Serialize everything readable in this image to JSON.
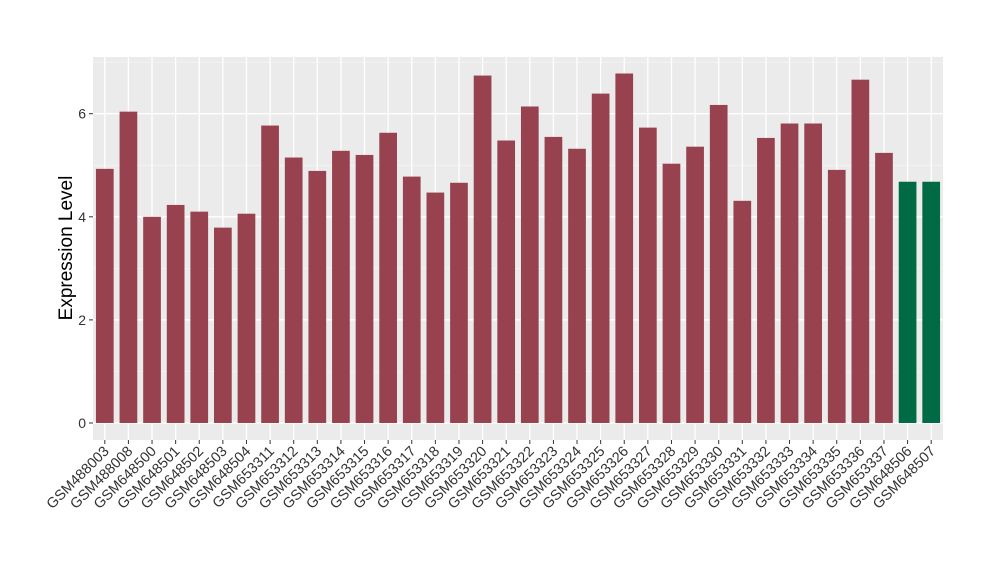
{
  "chart_data": {
    "type": "bar",
    "y_label": "Expression Level",
    "categories": [
      "GSM488003",
      "GSM488008",
      "GSM648500",
      "GSM648501",
      "GSM648502",
      "GSM648503",
      "GSM648504",
      "GSM653311",
      "GSM653312",
      "GSM653313",
      "GSM653314",
      "GSM653315",
      "GSM653316",
      "GSM653317",
      "GSM653318",
      "GSM653319",
      "GSM653320",
      "GSM653321",
      "GSM653322",
      "GSM653323",
      "GSM653324",
      "GSM653325",
      "GSM653326",
      "GSM653327",
      "GSM653328",
      "GSM653329",
      "GSM653330",
      "GSM653331",
      "GSM653332",
      "GSM653333",
      "GSM653334",
      "GSM653335",
      "GSM653336",
      "GSM653337",
      "GSM648506",
      "GSM648507"
    ],
    "values": [
      4.93,
      6.04,
      4.0,
      4.23,
      4.1,
      3.79,
      4.06,
      5.77,
      5.15,
      4.89,
      5.28,
      5.2,
      5.63,
      4.78,
      4.47,
      4.66,
      6.74,
      5.48,
      6.14,
      5.55,
      5.32,
      6.39,
      6.78,
      5.73,
      5.03,
      5.36,
      6.17,
      4.31,
      5.53,
      5.81,
      5.81,
      4.91,
      6.66,
      5.24,
      4.68,
      4.68
    ],
    "colors": [
      "#99424f",
      "#99424f",
      "#99424f",
      "#99424f",
      "#99424f",
      "#99424f",
      "#99424f",
      "#99424f",
      "#99424f",
      "#99424f",
      "#99424f",
      "#99424f",
      "#99424f",
      "#99424f",
      "#99424f",
      "#99424f",
      "#99424f",
      "#99424f",
      "#99424f",
      "#99424f",
      "#99424f",
      "#99424f",
      "#99424f",
      "#99424f",
      "#99424f",
      "#99424f",
      "#99424f",
      "#99424f",
      "#99424f",
      "#99424f",
      "#99424f",
      "#99424f",
      "#99424f",
      "#99424f",
      "#006a45",
      "#006a45"
    ],
    "ylim": [
      -0.33,
      7.1
    ],
    "yticks": [
      0,
      2,
      4,
      6
    ],
    "grid": true
  }
}
